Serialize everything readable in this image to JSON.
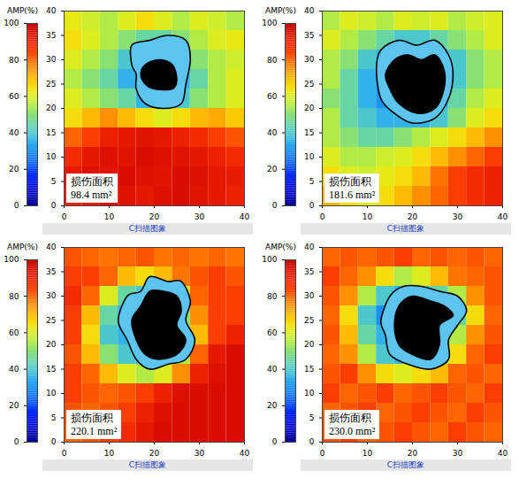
{
  "chart_data": [
    {
      "type": "heatmap",
      "xlim": [
        0,
        40
      ],
      "xticks": [
        0,
        10,
        20,
        30,
        40
      ],
      "ylim": [
        0,
        40
      ],
      "yticks": [
        0,
        5,
        10,
        15,
        20,
        25,
        30,
        35,
        40
      ],
      "x_edges": [
        0,
        4,
        8,
        12,
        16,
        20,
        24,
        28,
        32,
        36,
        40
      ],
      "y_edges": [
        0,
        4,
        8,
        12,
        16,
        20,
        24,
        28,
        32,
        36,
        40
      ],
      "cells": [
        [
          90,
          92,
          95,
          93,
          92,
          94,
          95,
          93,
          92,
          90
        ],
        [
          92,
          94,
          93,
          95,
          94,
          93,
          95,
          94,
          92,
          91
        ],
        [
          88,
          92,
          94,
          93,
          95,
          94,
          93,
          92,
          90,
          88
        ],
        [
          80,
          85,
          90,
          92,
          93,
          92,
          90,
          88,
          85,
          82
        ],
        [
          65,
          70,
          75,
          70,
          65,
          60,
          65,
          70,
          72,
          68
        ],
        [
          60,
          55,
          50,
          45,
          35,
          35,
          40,
          50,
          55,
          60
        ],
        [
          55,
          50,
          45,
          35,
          30,
          30,
          35,
          45,
          55,
          60
        ],
        [
          60,
          55,
          50,
          40,
          35,
          35,
          40,
          50,
          55,
          58
        ],
        [
          65,
          60,
          55,
          50,
          45,
          45,
          50,
          55,
          60,
          62
        ],
        [
          62,
          58,
          55,
          60,
          65,
          60,
          55,
          60,
          58,
          55
        ]
      ],
      "contour": [
        [
          15,
          29
        ],
        [
          15,
          33
        ],
        [
          19,
          34
        ],
        [
          23,
          35
        ],
        [
          27,
          34
        ],
        [
          28,
          30
        ],
        [
          27,
          25
        ],
        [
          26,
          21
        ],
        [
          22,
          20
        ],
        [
          18,
          21
        ],
        [
          16,
          24
        ],
        [
          16,
          27
        ]
      ],
      "damage": [
        [
          18,
          25
        ],
        [
          20,
          24
        ],
        [
          24,
          24
        ],
        [
          25,
          26
        ],
        [
          24,
          29
        ],
        [
          21,
          30
        ],
        [
          18,
          29
        ],
        [
          17,
          27
        ]
      ],
      "annotation": [
        "损伤面积",
        "98.4 mm²"
      ],
      "colorbar": {
        "label": "AMP(%)",
        "range": [
          0,
          100
        ],
        "ticks": [
          0,
          20,
          40,
          60,
          80,
          100
        ]
      },
      "caption": "C扫描图象"
    },
    {
      "type": "heatmap",
      "xlim": [
        0,
        40
      ],
      "xticks": [
        0,
        10,
        20,
        30,
        40
      ],
      "ylim": [
        0,
        40
      ],
      "yticks": [
        0,
        5,
        10,
        15,
        20,
        25,
        30,
        35,
        40
      ],
      "x_edges": [
        0,
        4,
        8,
        12,
        16,
        20,
        24,
        28,
        32,
        36,
        40
      ],
      "y_edges": [
        0,
        4,
        8,
        12,
        16,
        20,
        24,
        28,
        32,
        36,
        40
      ],
      "cells": [
        [
          70,
          65,
          60,
          65,
          70,
          75,
          80,
          85,
          88,
          90
        ],
        [
          65,
          60,
          58,
          62,
          65,
          70,
          78,
          85,
          88,
          90
        ],
        [
          60,
          55,
          55,
          58,
          60,
          65,
          70,
          75,
          80,
          85
        ],
        [
          55,
          50,
          45,
          45,
          50,
          55,
          60,
          65,
          70,
          75
        ],
        [
          55,
          45,
          40,
          35,
          35,
          35,
          40,
          50,
          60,
          65
        ],
        [
          50,
          45,
          35,
          30,
          30,
          30,
          35,
          45,
          55,
          60
        ],
        [
          55,
          45,
          35,
          30,
          30,
          30,
          30,
          40,
          50,
          55
        ],
        [
          55,
          50,
          40,
          35,
          30,
          30,
          35,
          40,
          50,
          55
        ],
        [
          60,
          55,
          50,
          45,
          40,
          40,
          45,
          50,
          55,
          60
        ],
        [
          55,
          60,
          58,
          55,
          60,
          58,
          60,
          55,
          58,
          60
        ]
      ],
      "contour": [
        [
          12,
          28
        ],
        [
          13,
          32
        ],
        [
          17,
          34
        ],
        [
          21,
          33
        ],
        [
          25,
          34
        ],
        [
          28,
          31
        ],
        [
          29,
          27
        ],
        [
          28,
          22
        ],
        [
          25,
          18
        ],
        [
          20,
          17
        ],
        [
          16,
          19
        ],
        [
          13,
          22
        ]
      ],
      "damage": [
        [
          14,
          27
        ],
        [
          16,
          30
        ],
        [
          19,
          31
        ],
        [
          22,
          30
        ],
        [
          25,
          31
        ],
        [
          27,
          28
        ],
        [
          27,
          24
        ],
        [
          25,
          20
        ],
        [
          21,
          19
        ],
        [
          17,
          21
        ],
        [
          15,
          24
        ]
      ],
      "annotation": [
        "损伤面积",
        "181.6 mm²"
      ],
      "colorbar": {
        "label": "AMP(%)",
        "range": [
          0,
          100
        ],
        "ticks": [
          0,
          20,
          40,
          60,
          80,
          100
        ]
      },
      "caption": "C扫描图象"
    },
    {
      "type": "heatmap",
      "xlim": [
        0,
        40
      ],
      "xticks": [
        0,
        10,
        20,
        30,
        40
      ],
      "ylim": [
        0,
        40
      ],
      "yticks": [
        0,
        5,
        10,
        15,
        20,
        25,
        30,
        35,
        40
      ],
      "x_edges": [
        0,
        4,
        8,
        12,
        16,
        20,
        24,
        28,
        32,
        36,
        40
      ],
      "y_edges": [
        0,
        4,
        8,
        12,
        16,
        20,
        24,
        28,
        32,
        36,
        40
      ],
      "cells": [
        [
          80,
          82,
          85,
          88,
          92,
          95,
          95,
          95,
          95,
          95
        ],
        [
          82,
          80,
          82,
          85,
          90,
          94,
          95,
          95,
          95,
          95
        ],
        [
          85,
          82,
          80,
          82,
          85,
          90,
          94,
          95,
          95,
          95
        ],
        [
          85,
          80,
          70,
          60,
          55,
          60,
          75,
          90,
          94,
          95
        ],
        [
          82,
          70,
          50,
          40,
          35,
          40,
          55,
          80,
          92,
          95
        ],
        [
          85,
          65,
          40,
          35,
          30,
          35,
          45,
          70,
          85,
          90
        ],
        [
          85,
          70,
          45,
          35,
          30,
          35,
          50,
          75,
          85,
          85
        ],
        [
          88,
          80,
          60,
          45,
          40,
          45,
          60,
          80,
          85,
          85
        ],
        [
          85,
          85,
          80,
          70,
          65,
          70,
          78,
          82,
          85,
          82
        ],
        [
          82,
          80,
          78,
          80,
          82,
          78,
          80,
          78,
          80,
          78
        ]
      ],
      "contour": [
        [
          12,
          25
        ],
        [
          14,
          30
        ],
        [
          17,
          31
        ],
        [
          19,
          34
        ],
        [
          23,
          33
        ],
        [
          26,
          33
        ],
        [
          28,
          29
        ],
        [
          27,
          25
        ],
        [
          29,
          21
        ],
        [
          27,
          17
        ],
        [
          23,
          16
        ],
        [
          19,
          15
        ],
        [
          16,
          17
        ],
        [
          14,
          21
        ]
      ],
      "damage": [
        [
          15,
          25
        ],
        [
          17,
          28
        ],
        [
          19,
          31
        ],
        [
          22,
          31
        ],
        [
          25,
          30
        ],
        [
          26,
          27
        ],
        [
          25,
          24
        ],
        [
          27,
          21
        ],
        [
          25,
          18
        ],
        [
          21,
          17
        ],
        [
          18,
          18
        ],
        [
          16,
          21
        ]
      ],
      "annotation": [
        "损伤面积",
        "220.1 mm²"
      ],
      "colorbar": {
        "label": "AMP(%)",
        "range": [
          0,
          100
        ],
        "ticks": [
          0,
          20,
          40,
          60,
          80,
          100
        ]
      },
      "caption": "C扫描图象"
    },
    {
      "type": "heatmap",
      "xlim": [
        0,
        40
      ],
      "xticks": [
        0,
        10,
        20,
        30,
        40
      ],
      "ylim": [
        0,
        40
      ],
      "yticks": [
        0,
        5,
        10,
        15,
        20,
        25,
        30,
        35,
        40
      ],
      "x_edges": [
        0,
        4,
        8,
        12,
        16,
        20,
        24,
        28,
        32,
        36,
        40
      ],
      "y_edges": [
        0,
        4,
        8,
        12,
        16,
        20,
        24,
        28,
        32,
        36,
        40
      ],
      "cells": [
        [
          82,
          85,
          80,
          82,
          85,
          82,
          80,
          85,
          82,
          80
        ],
        [
          80,
          82,
          85,
          80,
          82,
          85,
          82,
          80,
          85,
          82
        ],
        [
          85,
          80,
          82,
          85,
          80,
          82,
          85,
          82,
          80,
          85
        ],
        [
          82,
          85,
          75,
          65,
          60,
          65,
          70,
          80,
          82,
          80
        ],
        [
          80,
          75,
          55,
          40,
          35,
          40,
          50,
          65,
          80,
          85
        ],
        [
          82,
          70,
          45,
          35,
          30,
          35,
          40,
          55,
          75,
          82
        ],
        [
          80,
          65,
          40,
          30,
          30,
          30,
          35,
          45,
          65,
          80
        ],
        [
          82,
          75,
          55,
          40,
          35,
          40,
          45,
          55,
          75,
          82
        ],
        [
          85,
          80,
          75,
          65,
          55,
          60,
          70,
          78,
          80,
          82
        ],
        [
          80,
          82,
          80,
          82,
          85,
          80,
          82,
          80,
          82,
          80
        ]
      ],
      "contour": [
        [
          13,
          25
        ],
        [
          15,
          30
        ],
        [
          18,
          32
        ],
        [
          22,
          32
        ],
        [
          26,
          31
        ],
        [
          30,
          30
        ],
        [
          32,
          27
        ],
        [
          30,
          24
        ],
        [
          28,
          21
        ],
        [
          28,
          17
        ],
        [
          24,
          15
        ],
        [
          19,
          16
        ],
        [
          15,
          18
        ],
        [
          14,
          22
        ]
      ],
      "damage": [
        [
          16,
          24
        ],
        [
          17,
          28
        ],
        [
          20,
          30
        ],
        [
          24,
          29
        ],
        [
          27,
          28
        ],
        [
          29,
          26
        ],
        [
          26,
          24
        ],
        [
          26,
          20
        ],
        [
          24,
          17
        ],
        [
          20,
          18
        ],
        [
          17,
          20
        ]
      ],
      "annotation": [
        "损伤面积",
        "230.0 mm²"
      ],
      "colorbar": {
        "label": "AMP(%)",
        "range": [
          0,
          100
        ],
        "ticks": [
          0,
          20,
          40,
          60,
          80,
          100
        ]
      },
      "caption": "C扫描图象"
    }
  ]
}
